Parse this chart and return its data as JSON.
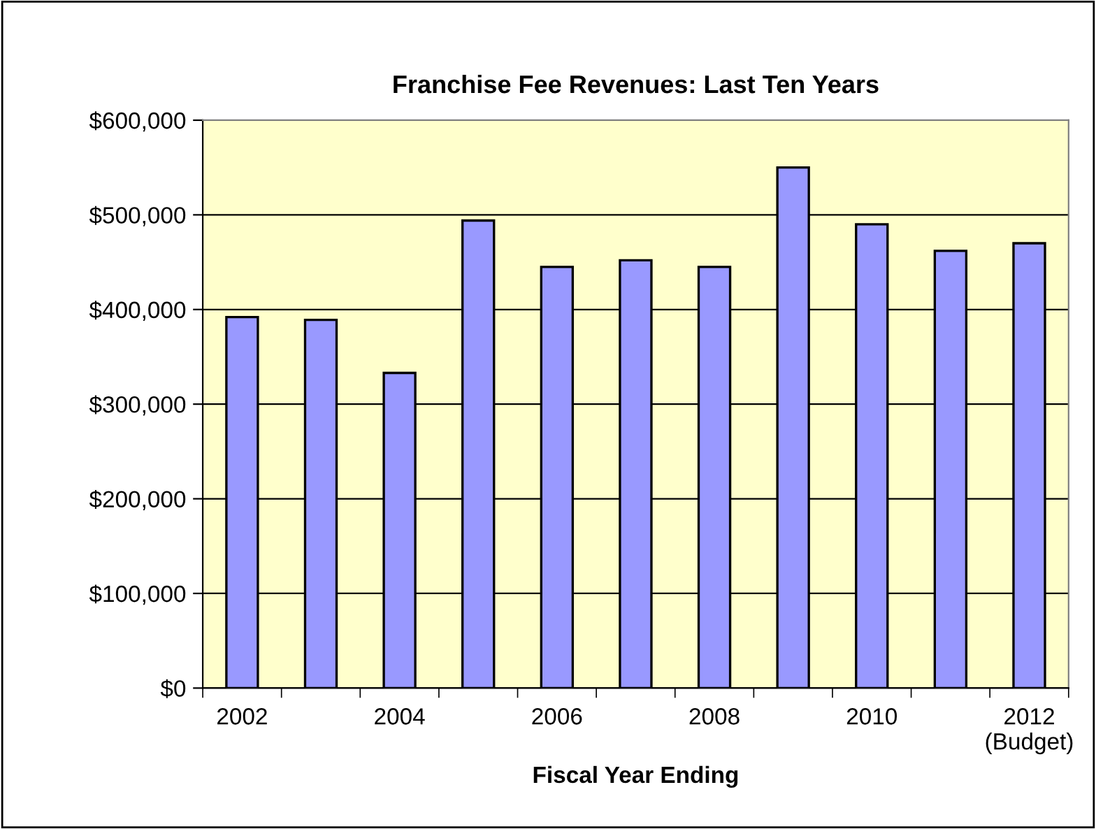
{
  "chart_data": {
    "type": "bar",
    "title": "Franchise Fee Revenues: Last Ten Years",
    "xlabel": "Fiscal Year Ending",
    "categories": [
      "2002",
      null,
      "2004",
      null,
      "2006",
      null,
      "2008",
      null,
      "2010",
      null,
      "2012\n(Budget)"
    ],
    "values": [
      392000,
      389000,
      333000,
      494000,
      445000,
      452000,
      445000,
      550000,
      490000,
      462000,
      470000
    ],
    "color": "#9999ff",
    "ylim": [
      0,
      600000
    ],
    "yticks": [
      {
        "value": 0,
        "label": "$0"
      },
      {
        "value": 100000,
        "label": "$100,000"
      },
      {
        "value": 200000,
        "label": "$200,000"
      },
      {
        "value": 300000,
        "label": "$300,000"
      },
      {
        "value": 400000,
        "label": "$400,000"
      },
      {
        "value": 500000,
        "label": "$500,000"
      },
      {
        "value": 600000,
        "label": "$600,000"
      }
    ],
    "grid": "y"
  }
}
